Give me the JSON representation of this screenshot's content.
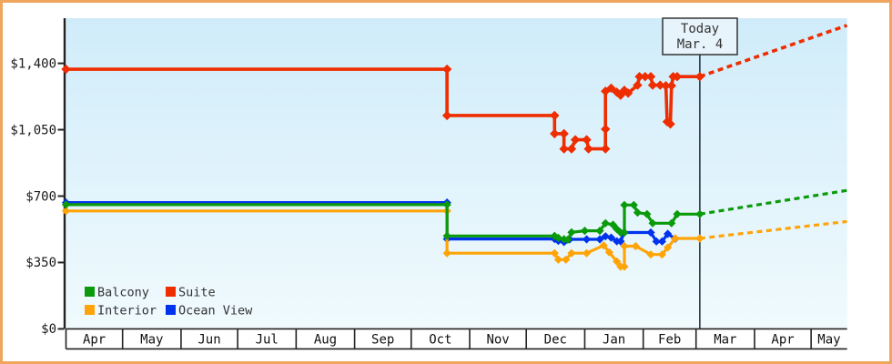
{
  "page": {
    "border_color": "#f0a55c",
    "background": "#ffffff",
    "plot_bg_top": "#d0ecfa",
    "plot_bg_bottom": "#f0fafd"
  },
  "today": {
    "line1": "Today",
    "line2": "Mar. 4"
  },
  "axis": {
    "y_ticks": [
      {
        "label": "$0",
        "value": 0
      },
      {
        "label": "$350",
        "value": 350
      },
      {
        "label": "$700",
        "value": 700
      },
      {
        "label": "$1,050",
        "value": 1050
      },
      {
        "label": "$1,400",
        "value": 1400
      }
    ],
    "months": [
      "Apr",
      "May",
      "Jun",
      "Jul",
      "Aug",
      "Sep",
      "Oct",
      "Nov",
      "Dec",
      "Jan",
      "Feb",
      "Mar",
      "Apr",
      "May"
    ],
    "month_days": [
      30,
      31,
      30,
      31,
      31,
      30,
      31,
      30,
      31,
      31,
      28,
      31,
      30,
      31
    ]
  },
  "legend": [
    {
      "label": "Balcony",
      "color": "#0a9a0a"
    },
    {
      "label": "Suite",
      "color": "#ee2d00"
    },
    {
      "label": "Interior",
      "color": "#ffa408"
    },
    {
      "label": "Ocean View",
      "color": "#0033ee"
    }
  ],
  "chart_data": {
    "type": "line",
    "x_unit": "days since Apr 1",
    "ylim": [
      0,
      1640
    ],
    "grid": false,
    "today_day": 336,
    "series": [
      {
        "name": "Ocean View",
        "color": "#0033ee",
        "points": [
          [
            0,
            666
          ],
          [
            202,
            666
          ],
          [
            202,
            474
          ],
          [
            259,
            474
          ],
          [
            261,
            464
          ],
          [
            264,
            458
          ],
          [
            267,
            472
          ],
          [
            276,
            472
          ],
          [
            283,
            472
          ],
          [
            286,
            488
          ],
          [
            289,
            481
          ],
          [
            292,
            462
          ],
          [
            294,
            462
          ],
          [
            296,
            508
          ],
          [
            310,
            508
          ],
          [
            313,
            461
          ],
          [
            316,
            461
          ],
          [
            319,
            501
          ],
          [
            323,
            475
          ]
        ],
        "forecast": null
      },
      {
        "name": "Interior",
        "color": "#ffa408",
        "points": [
          [
            0,
            622
          ],
          [
            202,
            622
          ],
          [
            202,
            399
          ],
          [
            259,
            399
          ],
          [
            261,
            365
          ],
          [
            265,
            365
          ],
          [
            268,
            399
          ],
          [
            276,
            399
          ],
          [
            285,
            440
          ],
          [
            288,
            404
          ],
          [
            292,
            355
          ],
          [
            294,
            328
          ],
          [
            296,
            328
          ],
          [
            296,
            436
          ],
          [
            302,
            436
          ],
          [
            310,
            392
          ],
          [
            316,
            392
          ],
          [
            319,
            429
          ],
          [
            323,
            477
          ],
          [
            336,
            477
          ]
        ],
        "forecast": [
          [
            336,
            477
          ],
          [
            414,
            566
          ]
        ]
      },
      {
        "name": "Balcony",
        "color": "#0a9a0a",
        "points": [
          [
            0,
            655
          ],
          [
            202,
            655
          ],
          [
            202,
            490
          ],
          [
            259,
            490
          ],
          [
            261,
            480
          ],
          [
            264,
            473
          ],
          [
            266,
            470
          ],
          [
            268,
            509
          ],
          [
            275,
            517
          ],
          [
            283,
            517
          ],
          [
            286,
            557
          ],
          [
            290,
            549
          ],
          [
            292,
            526
          ],
          [
            294,
            508
          ],
          [
            296,
            508
          ],
          [
            296,
            653
          ],
          [
            301,
            653
          ],
          [
            303,
            613
          ],
          [
            308,
            605
          ],
          [
            311,
            557
          ],
          [
            321,
            557
          ],
          [
            324,
            605
          ],
          [
            336,
            605
          ]
        ],
        "forecast": [
          [
            336,
            605
          ],
          [
            414,
            730
          ]
        ]
      },
      {
        "name": "Suite",
        "color": "#ee2d00",
        "points": [
          [
            0,
            1369
          ],
          [
            202,
            1369
          ],
          [
            202,
            1125
          ],
          [
            259,
            1125
          ],
          [
            259,
            1029
          ],
          [
            264,
            1029
          ],
          [
            264,
            949
          ],
          [
            268,
            949
          ],
          [
            270,
            997
          ],
          [
            276,
            997
          ],
          [
            277,
            949
          ],
          [
            286,
            949
          ],
          [
            286,
            1053
          ],
          [
            286,
            1253
          ],
          [
            289,
            1269
          ],
          [
            292,
            1248
          ],
          [
            294,
            1232
          ],
          [
            296,
            1258
          ],
          [
            298,
            1243
          ],
          [
            303,
            1285
          ],
          [
            304,
            1330
          ],
          [
            307,
            1330
          ],
          [
            310,
            1330
          ],
          [
            311,
            1285
          ],
          [
            315,
            1285
          ],
          [
            318,
            1282
          ],
          [
            318.7,
            1092
          ],
          [
            320.4,
            1080
          ],
          [
            321,
            1282
          ],
          [
            321.9,
            1330
          ],
          [
            324,
            1330
          ],
          [
            336,
            1330
          ]
        ],
        "forecast": [
          [
            336,
            1330
          ],
          [
            414,
            1600
          ]
        ]
      }
    ]
  }
}
